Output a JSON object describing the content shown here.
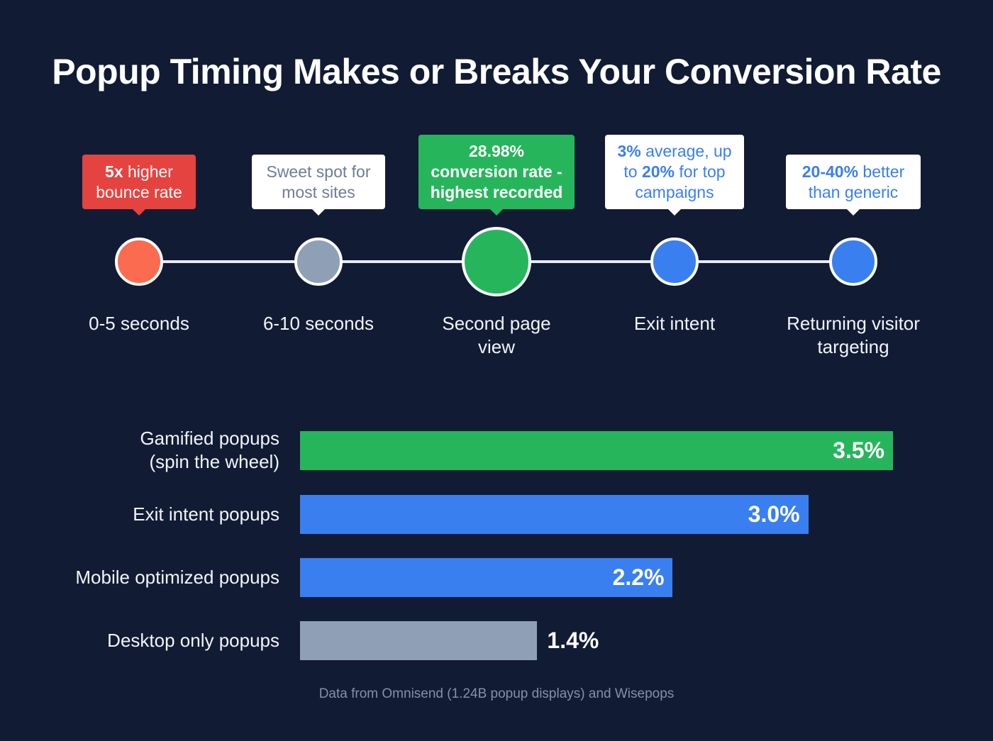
{
  "title": "Popup Timing Makes or Breaks Your Conversion Rate",
  "colors": {
    "background": "#111b34",
    "red": "#e5433f",
    "orange": "#fb6b4f",
    "gray": "#8fa0b6",
    "green": "#27b55c",
    "blue": "#3a7ff0"
  },
  "timeline": [
    {
      "stage": "0-5 seconds",
      "callout_bold": "5x",
      "callout_text": " higher bounce rate",
      "style": "red"
    },
    {
      "stage": "6-10 seconds",
      "callout_bold": "",
      "callout_text": "Sweet spot for most sites",
      "style": "white-gray"
    },
    {
      "stage": "Second page view",
      "callout_bold": "28.98% conversion rate - highest recorded",
      "callout_text": "",
      "style": "green"
    },
    {
      "stage": "Exit intent",
      "callout_bold": "3%",
      "callout_text": " average, up to ",
      "callout_bold2": "20%",
      "callout_text2": " for top campaigns",
      "style": "white-blue"
    },
    {
      "stage": "Returning visitor targeting",
      "callout_bold": "20-40%",
      "callout_text": " better than generic",
      "style": "white-blue"
    }
  ],
  "chart_data": {
    "type": "bar",
    "orientation": "horizontal",
    "categories": [
      "Gamified popups (spin the wheel)",
      "Exit intent popups",
      "Mobile optimized popups",
      "Desktop only popups"
    ],
    "values": [
      3.5,
      3.0,
      2.2,
      1.4
    ],
    "labels": [
      "3.5%",
      "3.0%",
      "2.2%",
      "1.4%"
    ],
    "bar_colors": [
      "#27b55c",
      "#3a7ff0",
      "#3a7ff0",
      "#8fa0b6"
    ],
    "unit": "%",
    "xlim": [
      0,
      3.5
    ],
    "grid": false
  },
  "source": "Data from Omnisend (1.24B popup displays) and Wisepops"
}
